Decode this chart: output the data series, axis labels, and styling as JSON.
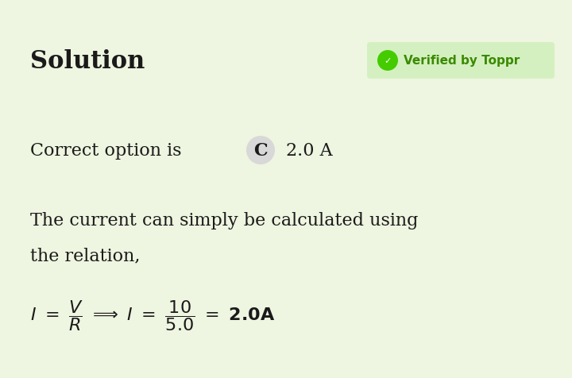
{
  "background_color": "#eef5e0",
  "title_text": "Solution",
  "title_fontsize": 22,
  "title_color": "#1a1a1a",
  "badge_text": "Verified by Toppr",
  "badge_bg_light": "#d4f0c0",
  "badge_icon_bg": "#44cc00",
  "badge_text_color": "#3a8a00",
  "badge_fontsize": 11,
  "correct_text": "Correct option is",
  "correct_fontsize": 16,
  "correct_color": "#1a1a1a",
  "option_letter": "C",
  "option_circle_color": "#d8d8d8",
  "option_letter_fontsize": 16,
  "option_letter_color": "#1a1a1a",
  "answer_text": "2.0 A",
  "answer_fontsize": 16,
  "answer_color": "#1a1a1a",
  "desc_line1": "The current can simply be calculated using",
  "desc_line2": "the relation,",
  "desc_fontsize": 16,
  "desc_color": "#1a1a1a",
  "formula_fontsize": 14,
  "formula_color": "#1a1a1a"
}
